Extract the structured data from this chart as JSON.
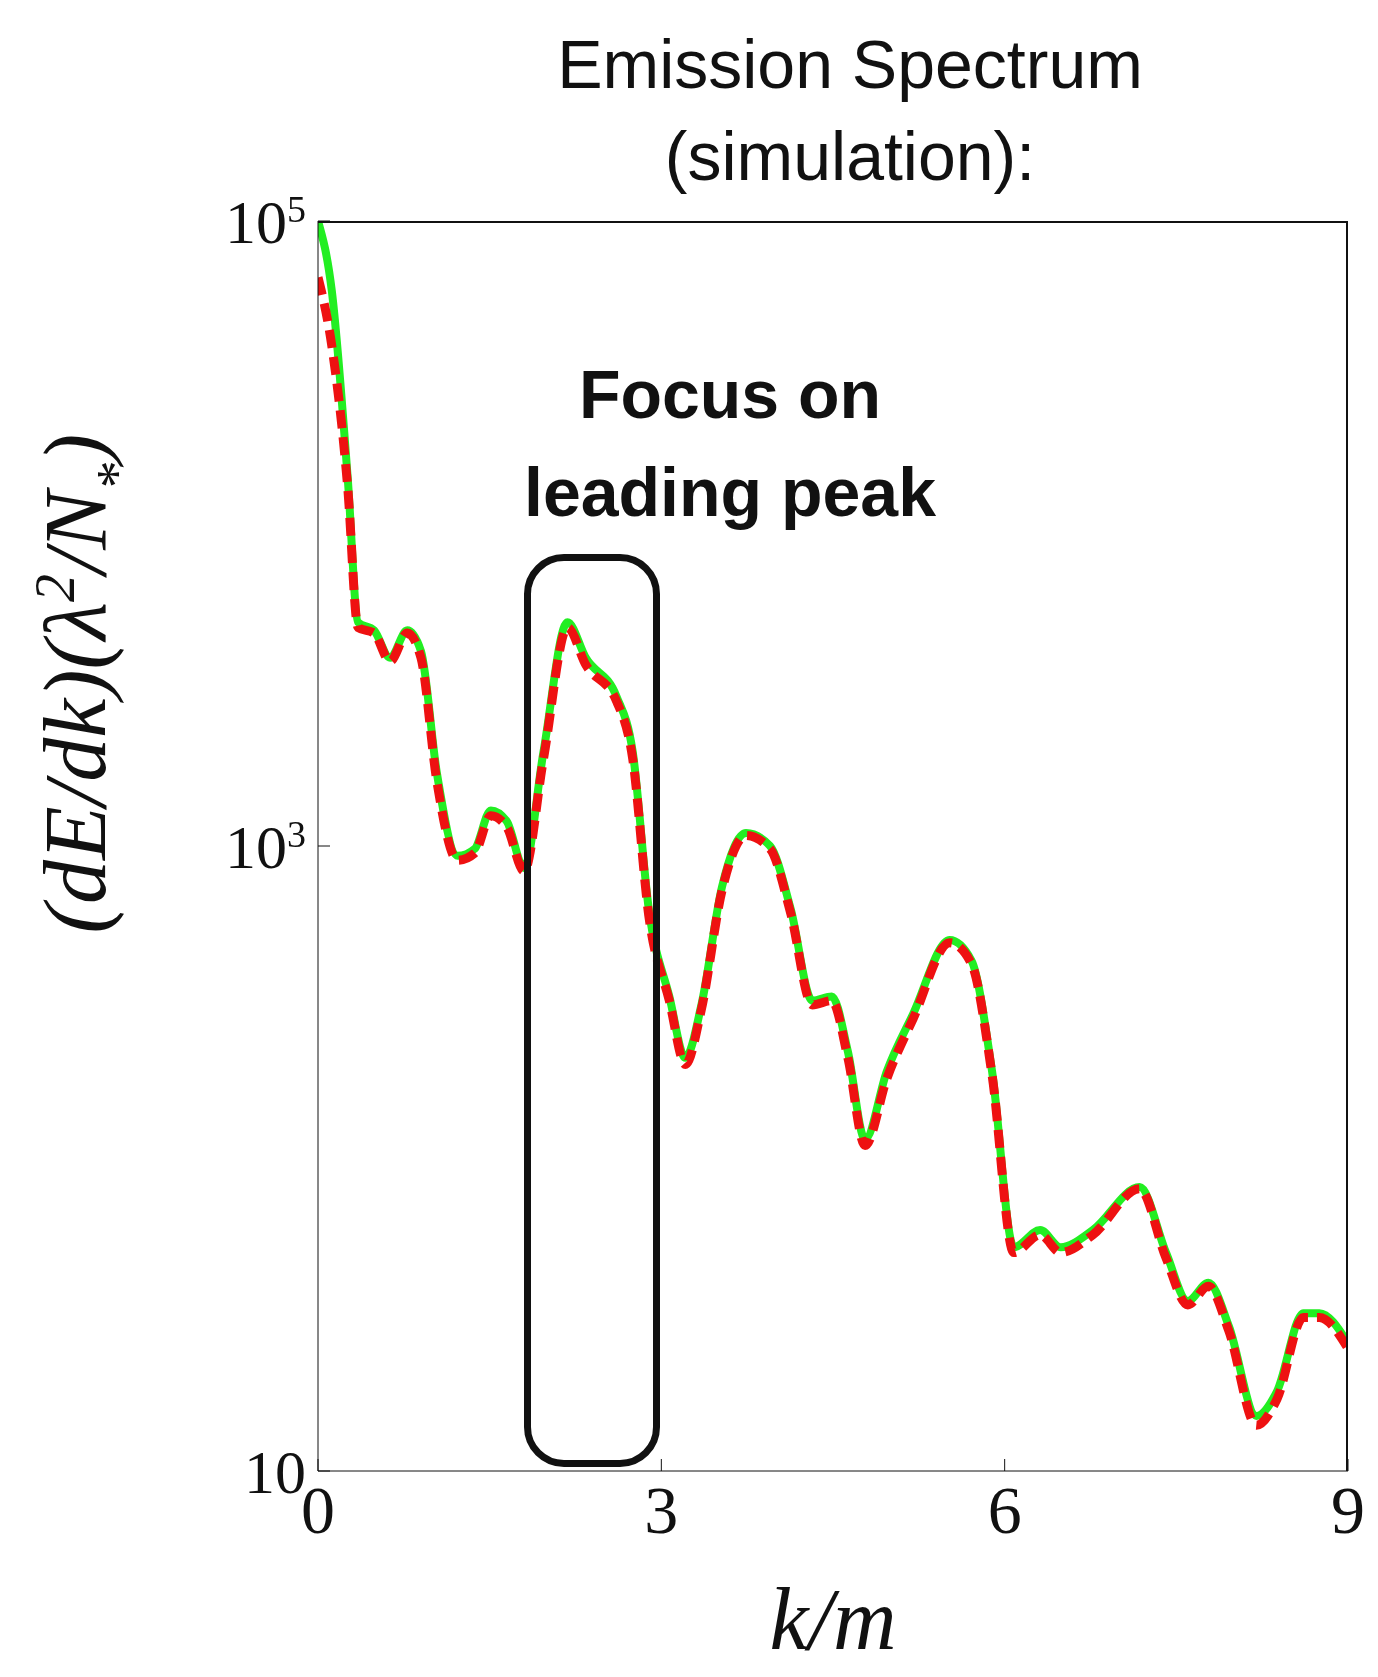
{
  "chart_data": {
    "type": "line",
    "title": "Emission Spectrum (simulation):",
    "xlabel": "k/m",
    "ylabel": "(dE/dk)(λ$^{2}$/N$_{*}$)",
    "annotations": [
      "Focus on leading peak"
    ],
    "x": [
      0,
      0.12,
      0.26,
      0.35,
      0.49,
      0.63,
      0.78,
      0.9,
      1.04,
      1.22,
      1.37,
      1.51,
      1.65,
      1.8,
      1.97,
      2.18,
      2.34,
      2.61,
      2.75,
      2.89,
      3.07,
      3.21,
      3.35,
      3.53,
      3.74,
      3.95,
      4.13,
      4.32,
      4.49,
      4.63,
      4.78,
      4.97,
      5.2,
      5.52,
      5.71,
      5.89,
      6.08,
      6.31,
      6.49,
      6.77,
      7.18,
      7.41,
      7.6,
      7.78,
      7.96,
      8.2,
      8.38,
      8.61,
      8.75,
      8.99
    ],
    "series": [
      {
        "color": "#22ee22",
        "line_style": "solid",
        "values": [
          100000,
          60000,
          15000,
          5200,
          4900,
          4000,
          4900,
          4200,
          1700,
          930,
          980,
          1300,
          1200,
          850,
          2000,
          5200,
          4000,
          3000,
          2000,
          630,
          330,
          210,
          310,
          740,
          1100,
          1000,
          630,
          320,
          330,
          220,
          115,
          190,
          290,
          500,
          430,
          190,
          52,
          59,
          52,
          59,
          81,
          50,
          35,
          40,
          29,
          15,
          18,
          32,
          32,
          26
        ]
      },
      {
        "color": "#ee1111",
        "line_style": "dashed",
        "values": [
          66000,
          40000,
          14000,
          5000,
          4800,
          3900,
          4800,
          4000,
          1600,
          900,
          950,
          1250,
          1150,
          830,
          1900,
          5000,
          3800,
          2900,
          1900,
          600,
          320,
          200,
          300,
          720,
          1080,
          980,
          610,
          310,
          320,
          210,
          110,
          180,
          280,
          490,
          420,
          185,
          50,
          57,
          50,
          57,
          80,
          48,
          34,
          39,
          28,
          14,
          17,
          31,
          31,
          25
        ]
      }
    ],
    "xlim": [
      0,
      9
    ],
    "xticks": [
      0,
      3,
      6,
      9
    ],
    "ylim": [
      10,
      100000
    ],
    "log": true,
    "yticks": [
      {
        "value": 10,
        "label": "10"
      },
      {
        "value": 1000,
        "label": "10$^{3}$"
      },
      {
        "value": 100000,
        "label": "10$^{5}$"
      }
    ],
    "grid": false,
    "legend": false
  }
}
